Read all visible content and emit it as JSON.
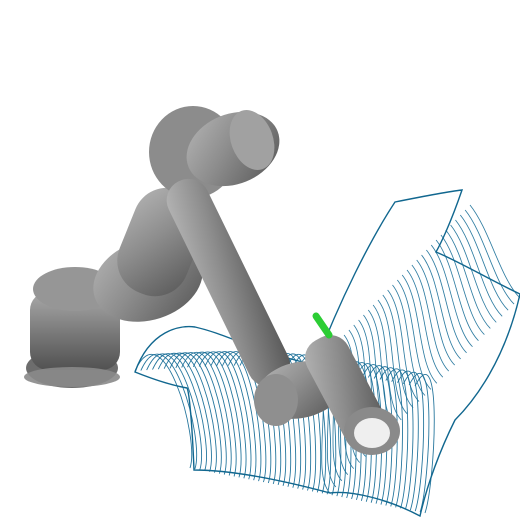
{
  "scene": {
    "background_color": "#ffffff",
    "robot_color": "#7c7c7c",
    "robot_highlight_color": "#b5b5b5",
    "robot_shadow_color": "#4e4e4e",
    "tool_color": "#2ccd34",
    "surface_color": "#1a6f98",
    "robot_icon": "robot-arm-icon",
    "surface_icon": "mesh-surface-icon"
  }
}
